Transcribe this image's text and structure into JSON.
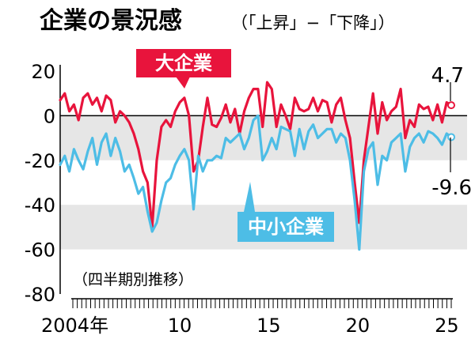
{
  "chart_data": {
    "type": "line",
    "title": "企業の景況感",
    "subtitle": "（「上昇」−「下降」）",
    "note": "（四半期別推移）",
    "x_start": "2004年1-3月",
    "x_labels": [
      "2004年",
      "10",
      "15",
      "20",
      "25"
    ],
    "x_label_quarters": [
      0,
      24,
      44,
      64,
      84
    ],
    "ylim": [
      -80,
      20
    ],
    "yticks": [
      20,
      0,
      -20,
      -40,
      -60,
      -80
    ],
    "shaded_bands": [
      [
        -20,
        0
      ],
      [
        -60,
        -40
      ]
    ],
    "colors": {
      "large": "#e8143c",
      "small": "#4dbde6",
      "band": "#e6e6e6"
    },
    "series": [
      {
        "key": "large",
        "name": "大企業",
        "end_label": "4.7",
        "values": [
          7,
          10,
          2,
          5,
          -2,
          8,
          10,
          5,
          8,
          2,
          9,
          7,
          -3,
          2,
          0,
          -3,
          -8,
          -15,
          -25,
          -30,
          -50,
          -20,
          -5,
          -2,
          -5,
          2,
          6,
          8,
          0,
          -25,
          -20,
          -5,
          8,
          -4,
          -5,
          -1,
          5,
          -3,
          3,
          -8,
          2,
          8,
          12,
          12,
          -5,
          15,
          12,
          -5,
          5,
          0,
          -6,
          8,
          3,
          2,
          3,
          8,
          2,
          7,
          6,
          -3,
          5,
          8,
          -2,
          -10,
          -30,
          -48,
          -20,
          -5,
          10,
          -8,
          6,
          -2,
          2,
          4,
          12,
          -10,
          -2,
          -5,
          5,
          3,
          4,
          -2,
          5,
          -3,
          6,
          4.7
        ]
      },
      {
        "key": "small",
        "name": "中小企業",
        "end_label": "-9.6",
        "values": [
          -22,
          -18,
          -25,
          -15,
          -20,
          -24,
          -16,
          -10,
          -22,
          -12,
          -8,
          -18,
          -10,
          -16,
          -25,
          -22,
          -28,
          -35,
          -32,
          -43,
          -52,
          -48,
          -38,
          -30,
          -28,
          -22,
          -18,
          -15,
          -20,
          -42,
          -18,
          -25,
          -20,
          -20,
          -18,
          -19,
          -10,
          -12,
          -10,
          -8,
          -15,
          -10,
          -2,
          0,
          -20,
          -16,
          -10,
          -15,
          -5,
          -6,
          -7,
          -18,
          -6,
          -15,
          -7,
          -4,
          -10,
          -8,
          -6,
          -6,
          -12,
          -8,
          -10,
          -20,
          -38,
          -60,
          -25,
          -15,
          -12,
          -31,
          -18,
          -20,
          -12,
          -10,
          -8,
          -25,
          -14,
          -10,
          -8,
          -12,
          -7,
          -8,
          -10,
          -13,
          -8,
          -9.6
        ]
      }
    ]
  }
}
